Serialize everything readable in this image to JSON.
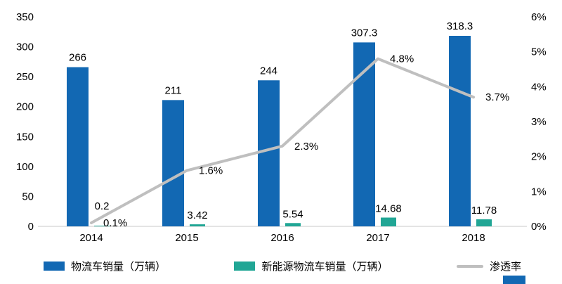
{
  "chart_data": {
    "type": "bar",
    "subtype": "clustered-bar-with-line-combo",
    "categories": [
      "2014",
      "2015",
      "2016",
      "2017",
      "2018"
    ],
    "series": [
      {
        "name": "物流车销量（万辆）",
        "type": "bar",
        "axis": "left",
        "color": "#1268B3",
        "values": [
          266,
          211,
          244,
          307.3,
          318.3
        ],
        "labels": [
          "266",
          "211",
          "244",
          "307.3",
          "318.3"
        ]
      },
      {
        "name": "新能源物流车销量（万辆）",
        "type": "bar",
        "axis": "left",
        "color": "#21A695",
        "values": [
          0.2,
          3.42,
          5.54,
          14.68,
          11.78
        ],
        "labels": [
          "0.2",
          "3.42",
          "5.54",
          "14.68",
          "11.78"
        ]
      },
      {
        "name": "渗透率",
        "type": "line",
        "axis": "right",
        "color": "#BFBFBF",
        "values": [
          0.1,
          1.6,
          2.3,
          4.8,
          3.7
        ],
        "labels": [
          "0.1%",
          "1.6%",
          "2.3%",
          "4.8%",
          "3.7%"
        ]
      }
    ],
    "left_axis": {
      "min": 0,
      "max": 350,
      "ticks": [
        "0",
        "50",
        "100",
        "150",
        "200",
        "250",
        "300",
        "350"
      ]
    },
    "right_axis": {
      "min": 0,
      "max": 6,
      "ticks": [
        "0%",
        "1%",
        "2%",
        "3%",
        "4%",
        "5%",
        "6%"
      ]
    },
    "grid": false,
    "legend_position": "bottom",
    "text_color": "#000000",
    "axis_line_color": "#C8C8C8"
  }
}
